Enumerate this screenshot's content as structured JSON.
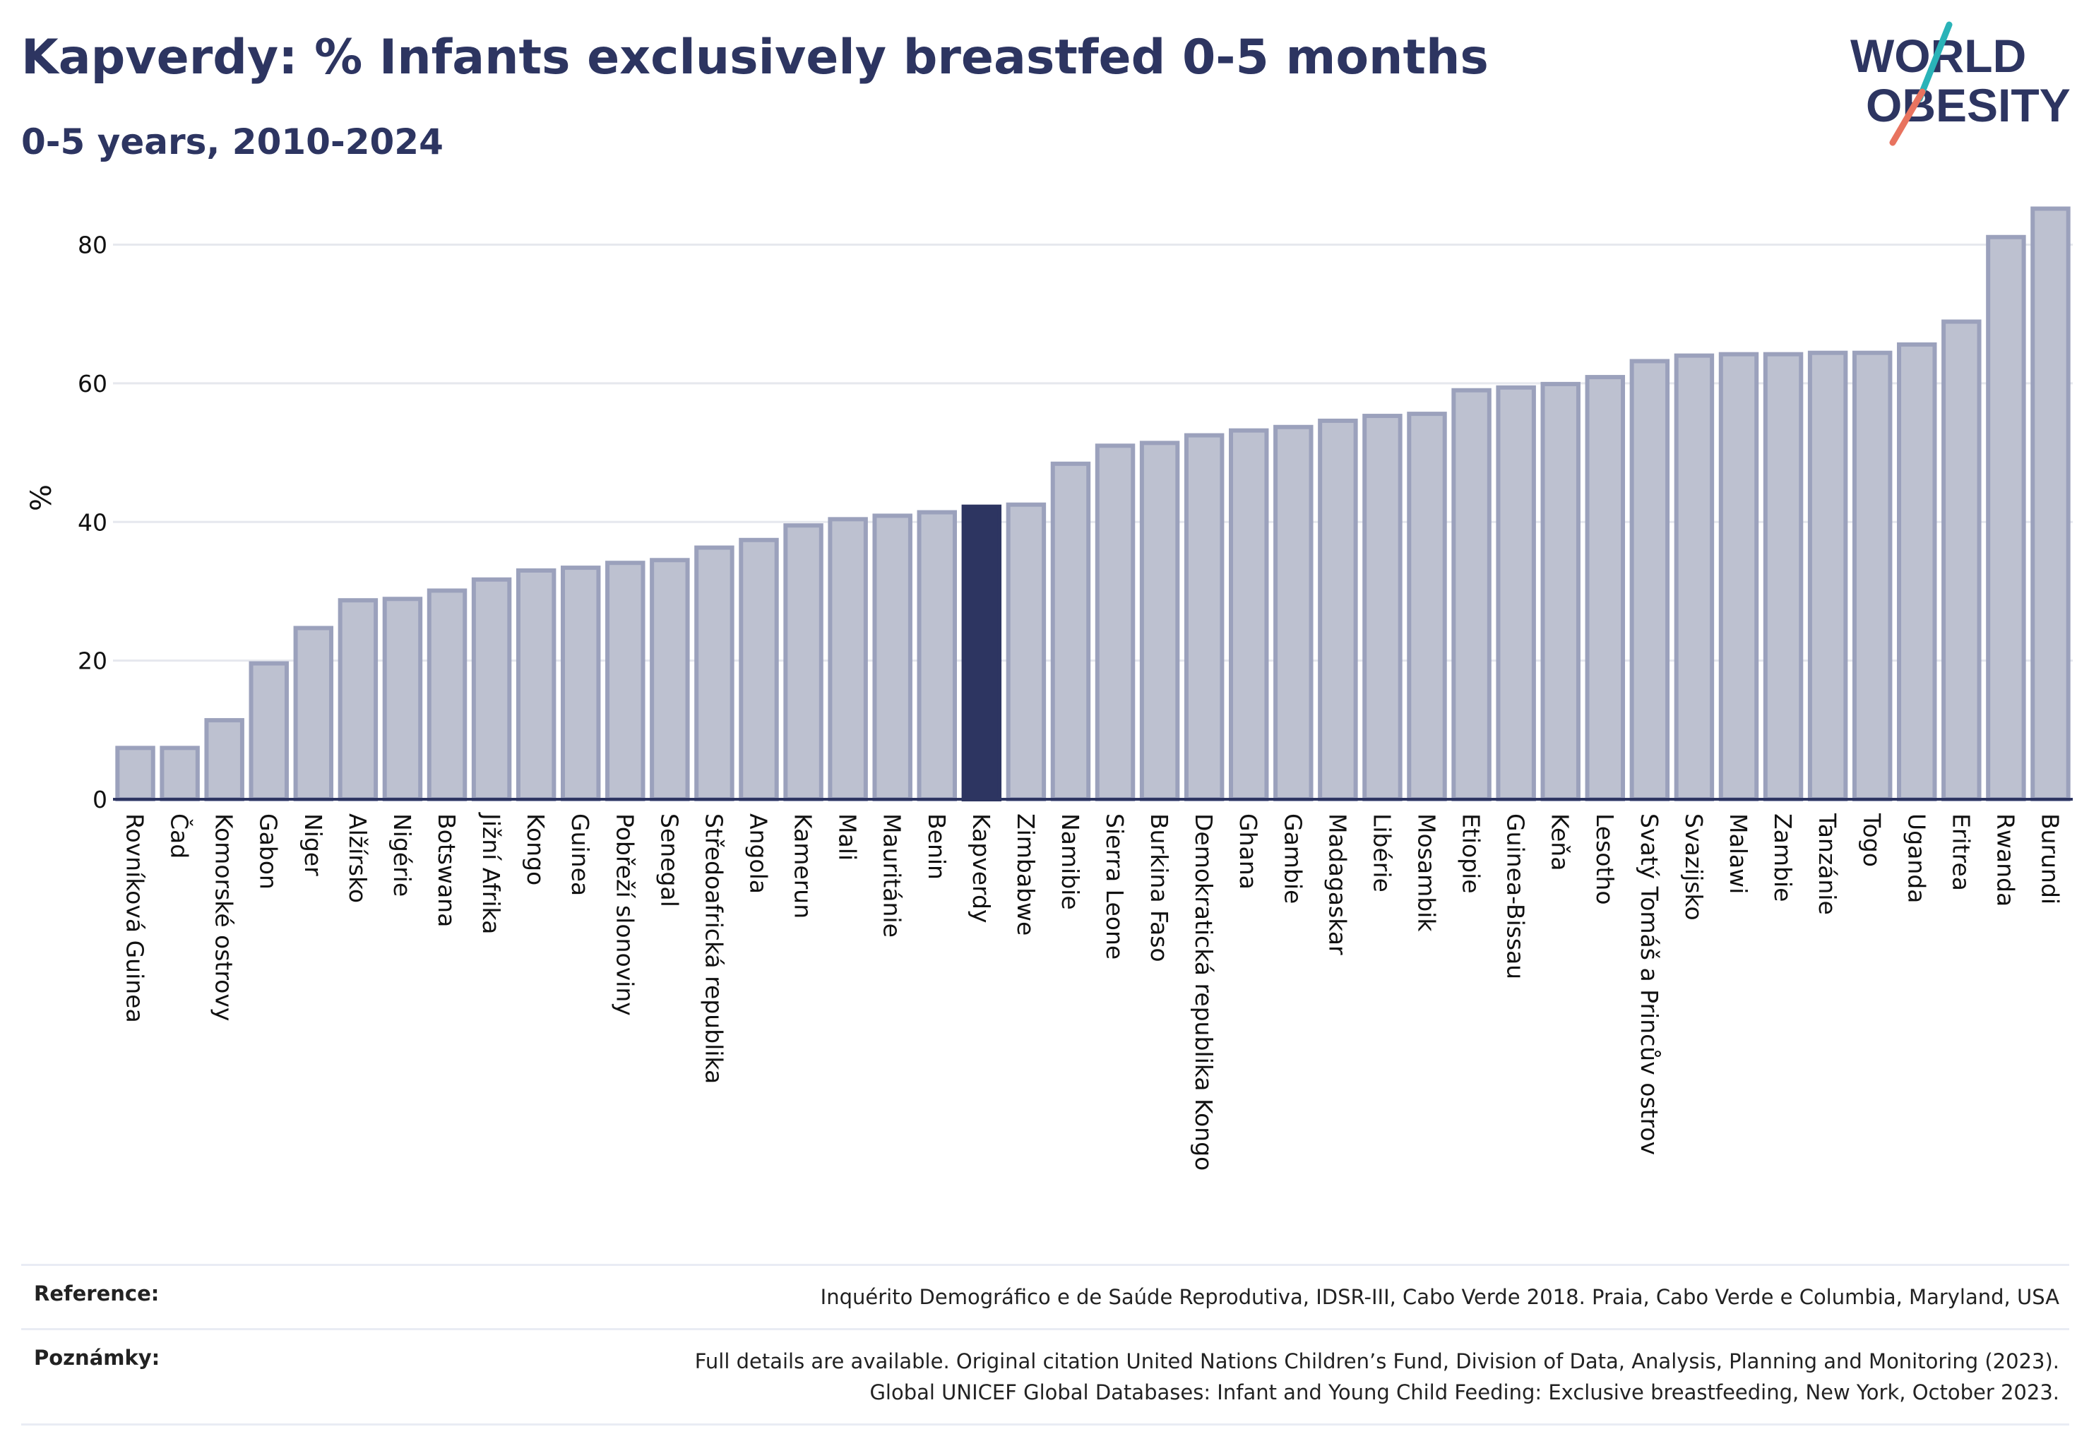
{
  "title": "Kapverdy: % Infants exclusively breastfed 0-5 months",
  "subtitle": "0-5 years, 2010-2024",
  "logo": {
    "line1": "WORLD",
    "line2": "OBESITY",
    "colors": {
      "text": "#2d3561",
      "slash_teal": "#2ab3b8",
      "slash_coral": "#e8735f"
    }
  },
  "colors": {
    "bar_fill": "#bdc1d0",
    "bar_stroke": "#9ba1bc",
    "highlight_fill": "#2d3561",
    "grid": "#e6e8ee",
    "axis": "#2d3561"
  },
  "chart_data": {
    "type": "bar",
    "ylabel": "%",
    "ylim": [
      0,
      88
    ],
    "yticks": [
      0,
      20,
      40,
      60,
      80
    ],
    "grid": true,
    "highlight": "Kapverdy",
    "categories": [
      "Rovníková Guinea",
      "Čad",
      "Komorské ostrovy",
      "Gabon",
      "Niger",
      "Alžírsko",
      "Nigérie",
      "Botswana",
      "Jižní Afrika",
      "Kongo",
      "Guinea",
      "Pobřeží slonoviny",
      "Senegal",
      "Středoafrická republika",
      "Angola",
      "Kamerun",
      "Mali",
      "Mauritánie",
      "Benin",
      "Kapverdy",
      "Zimbabwe",
      "Namibie",
      "Sierra Leone",
      "Burkina Faso",
      "Demokratická republika Kongo",
      "Ghana",
      "Gambie",
      "Madagaskar",
      "Libérie",
      "Mosambik",
      "Etiopie",
      "Guinea-Bissau",
      "Keňa",
      "Lesotho",
      "Svatý Tomáš a Princův ostrov",
      "Svazijsko",
      "Malawi",
      "Zambie",
      "Tanzánie",
      "Togo",
      "Uganda",
      "Eritrea",
      "Rwanda",
      "Burundi"
    ],
    "values": [
      7.4,
      7.4,
      11.4,
      19.6,
      24.7,
      28.7,
      28.9,
      30.1,
      31.7,
      33.0,
      33.4,
      34.1,
      34.5,
      36.3,
      37.4,
      39.5,
      40.4,
      40.9,
      41.4,
      42.2,
      42.5,
      48.4,
      51.0,
      51.4,
      52.5,
      53.2,
      53.7,
      54.6,
      55.3,
      55.6,
      59.0,
      59.4,
      59.9,
      60.9,
      63.2,
      64.0,
      64.2,
      64.2,
      64.4,
      64.4,
      65.6,
      68.9,
      81.1,
      85.2
    ]
  },
  "footer": {
    "reference_label": "Reference:",
    "reference_text": "Inquérito Demográfico e de Saúde Reprodutiva, IDSR-III, Cabo Verde 2018. Praia, Cabo Verde e Columbia, Maryland, USA",
    "notes_label": "Poznámky:",
    "notes_line1": "Full details are available. Original citation United Nations Children’s Fund, Division of Data, Analysis, Planning and Monitoring (2023).",
    "notes_line2": "Global UNICEF Global Databases: Infant and Young Child Feeding: Exclusive breastfeeding, New York, October 2023."
  }
}
